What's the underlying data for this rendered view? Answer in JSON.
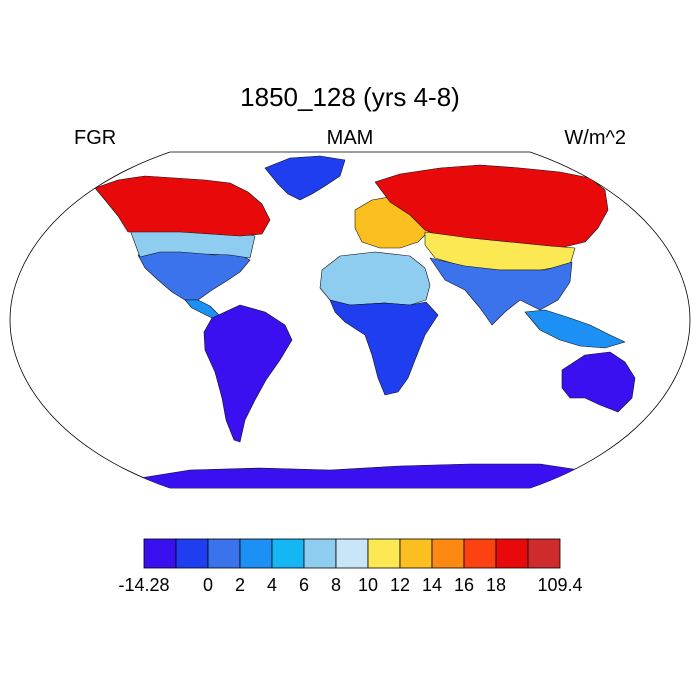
{
  "title": "1850_128 (yrs 4-8)",
  "variable": "FGR",
  "season": "MAM",
  "units": "W/m^2",
  "colorbar": {
    "colors": [
      "#3a10f0",
      "#1f3ef0",
      "#3a73ec",
      "#1d90f5",
      "#14b6f4",
      "#8fcdf0",
      "#c8e6f7",
      "#fbe852",
      "#fbbf1f",
      "#fc8a12",
      "#fb4210",
      "#e80a0a",
      "#cf2a2c"
    ],
    "tick_labels": [
      "-14.28",
      "0",
      "2",
      "4",
      "6",
      "8",
      "10",
      "12",
      "14",
      "16",
      "18",
      "109.4"
    ],
    "tick_boundaries": [
      0,
      2,
      3,
      4,
      5,
      6,
      7,
      8,
      9,
      10,
      11,
      13
    ]
  },
  "map": {
    "projection": "robinson",
    "ocean_color": "#ffffff",
    "regions": [
      {
        "name": "north-america-south",
        "color": "#3a73ec"
      },
      {
        "name": "north-america-mid",
        "color": "#8fcdf0"
      },
      {
        "name": "north-america-north",
        "color": "#e80a0a"
      },
      {
        "name": "greenland",
        "color": "#1f3ef0"
      },
      {
        "name": "central-america",
        "color": "#1d90f5"
      },
      {
        "name": "south-america",
        "color": "#3a10f0"
      },
      {
        "name": "africa-south",
        "color": "#1f3ef0"
      },
      {
        "name": "africa-north",
        "color": "#8fcdf0"
      },
      {
        "name": "europe",
        "color": "#fbbf1f"
      },
      {
        "name": "asia-north",
        "color": "#e80a0a"
      },
      {
        "name": "asia-mid",
        "color": "#fbe852"
      },
      {
        "name": "asia-south",
        "color": "#3a73ec"
      },
      {
        "name": "southeast-asia",
        "color": "#1d90f5"
      },
      {
        "name": "australia",
        "color": "#3a10f0"
      },
      {
        "name": "antarctica",
        "color": "#3a10f0"
      }
    ]
  }
}
